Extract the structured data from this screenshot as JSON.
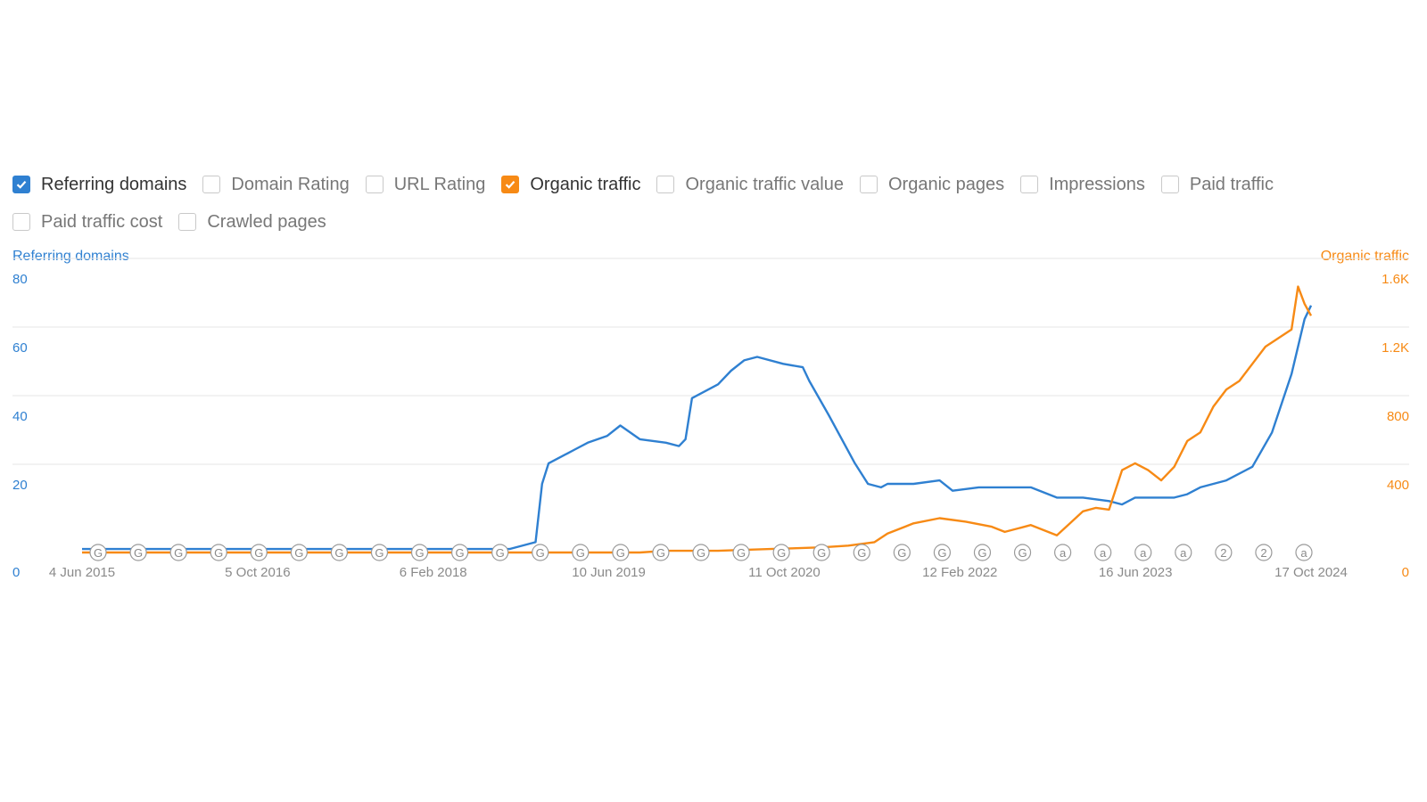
{
  "toggles": [
    {
      "label": "Referring domains",
      "checked": true,
      "color": "#2f80d1"
    },
    {
      "label": "Domain Rating",
      "checked": false
    },
    {
      "label": "URL Rating",
      "checked": false
    },
    {
      "label": "Organic traffic",
      "checked": true,
      "color": "#f78a15"
    },
    {
      "label": "Organic traffic value",
      "checked": false
    },
    {
      "label": "Organic pages",
      "checked": false
    },
    {
      "label": "Impressions",
      "checked": false
    },
    {
      "label": "Paid traffic",
      "checked": false
    },
    {
      "label": "Paid traffic cost",
      "checked": false
    },
    {
      "label": "Crawled pages",
      "checked": false
    }
  ],
  "chart_data": {
    "type": "line",
    "left_axis_title": "Referring domains",
    "right_axis_title": "Organic traffic",
    "left_ticks": [
      "0",
      "20",
      "40",
      "60",
      "80"
    ],
    "right_ticks": [
      "0",
      "400",
      "800",
      "1.2K",
      "1.6K"
    ],
    "left_ylim": [
      0,
      80
    ],
    "right_ylim": [
      0,
      1600
    ],
    "x_tick_labels": [
      "4 Jun 2015",
      "5 Oct 2016",
      "6 Feb 2018",
      "10 Jun 2019",
      "11 Oct 2020",
      "12 Feb 2022",
      "16 Jun 2023",
      "17 Oct 2024"
    ],
    "grid": true,
    "colors": {
      "referring_domains": "#2f80d1",
      "organic_traffic": "#f78a15",
      "annotation": "#9a9a9a"
    },
    "series": [
      {
        "name": "Referring domains",
        "axis": "left",
        "x": [
          2015.42,
          2018.5,
          2018.7,
          2018.9,
          2018.95,
          2019.0,
          2019.1,
          2019.2,
          2019.3,
          2019.45,
          2019.55,
          2019.7,
          2019.9,
          2020.0,
          2020.05,
          2020.1,
          2020.3,
          2020.4,
          2020.5,
          2020.6,
          2020.8,
          2020.95,
          2021.0,
          2021.15,
          2021.35,
          2021.45,
          2021.55,
          2021.6,
          2021.8,
          2022.0,
          2022.1,
          2022.3,
          2022.5,
          2022.7,
          2022.9,
          2023.1,
          2023.3,
          2023.4,
          2023.5,
          2023.6,
          2023.8,
          2023.9,
          2024.0,
          2024.2,
          2024.4,
          2024.55,
          2024.7,
          2024.8,
          2024.85
        ],
        "y": [
          1,
          1,
          1,
          3,
          20,
          26,
          28,
          30,
          32,
          34,
          37,
          33,
          32,
          31,
          33,
          45,
          49,
          53,
          56,
          57,
          55,
          54,
          50,
          40,
          26,
          20,
          19,
          20,
          20,
          21,
          18,
          19,
          19,
          19,
          16,
          16,
          15,
          14,
          16,
          16,
          16,
          17,
          19,
          21,
          25,
          35,
          52,
          68,
          72
        ]
      },
      {
        "name": "Organic traffic",
        "axis": "right",
        "x": [
          2015.42,
          2019.7,
          2019.9,
          2020.3,
          2020.5,
          2020.7,
          2020.9,
          2021.1,
          2021.3,
          2021.5,
          2021.6,
          2021.8,
          2022.0,
          2022.2,
          2022.4,
          2022.5,
          2022.7,
          2022.9,
          2023.0,
          2023.1,
          2023.2,
          2023.3,
          2023.4,
          2023.5,
          2023.6,
          2023.7,
          2023.8,
          2023.9,
          2024.0,
          2024.1,
          2024.2,
          2024.3,
          2024.4,
          2024.5,
          2024.6,
          2024.7,
          2024.75,
          2024.8,
          2024.85
        ],
        "y": [
          0,
          0,
          10,
          10,
          15,
          20,
          25,
          30,
          40,
          60,
          110,
          170,
          200,
          180,
          150,
          120,
          160,
          100,
          170,
          240,
          260,
          250,
          480,
          520,
          480,
          420,
          500,
          650,
          700,
          850,
          950,
          1000,
          1100,
          1200,
          1250,
          1300,
          1550,
          1450,
          1380
        ]
      }
    ],
    "annotation_markers": [
      "G",
      "G",
      "G",
      "G",
      "G",
      "G",
      "G",
      "G",
      "G",
      "G",
      "G",
      "G",
      "G",
      "G",
      "G",
      "G",
      "G",
      "G",
      "G",
      "G",
      "G",
      "G",
      "G",
      "G",
      "a",
      "a",
      "a",
      "a",
      "2",
      "2",
      "a"
    ]
  }
}
